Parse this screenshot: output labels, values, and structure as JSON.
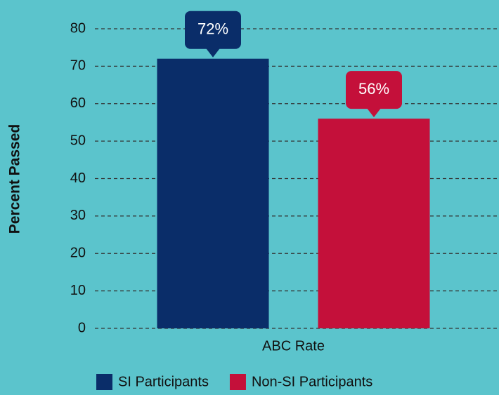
{
  "chart_data": {
    "type": "bar",
    "categories": [
      "ABC Rate"
    ],
    "series": [
      {
        "name": "SI Participants",
        "color": "#0a2d69",
        "values": [
          72
        ],
        "value_labels": [
          "72%"
        ]
      },
      {
        "name": "Non-SI Participants",
        "color": "#c4103a",
        "values": [
          56
        ],
        "value_labels": [
          "56%"
        ]
      }
    ],
    "y_label": "Percent Passed",
    "ylim": [
      0,
      80
    ],
    "yticks": [
      0,
      10,
      20,
      30,
      40,
      50,
      60,
      70,
      80
    ],
    "grid": true,
    "legend": "bottom"
  }
}
